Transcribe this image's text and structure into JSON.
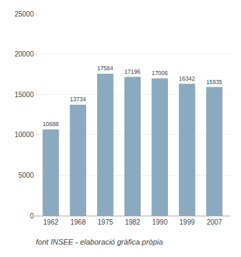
{
  "chart_data": {
    "type": "bar",
    "categories": [
      "1962",
      "1968",
      "1975",
      "1982",
      "1990",
      "1999",
      "2007"
    ],
    "values": [
      10688,
      13734,
      17584,
      17196,
      17006,
      16342,
      15935
    ],
    "color": "#8BAABF",
    "ylim": [
      0,
      25000
    ],
    "yticks": [
      0,
      5000,
      10000,
      15000,
      20000,
      25000
    ],
    "grid": true,
    "data_labels": true,
    "annotations": [
      "font INSEE - elaboració gràfica pròpia"
    ]
  }
}
